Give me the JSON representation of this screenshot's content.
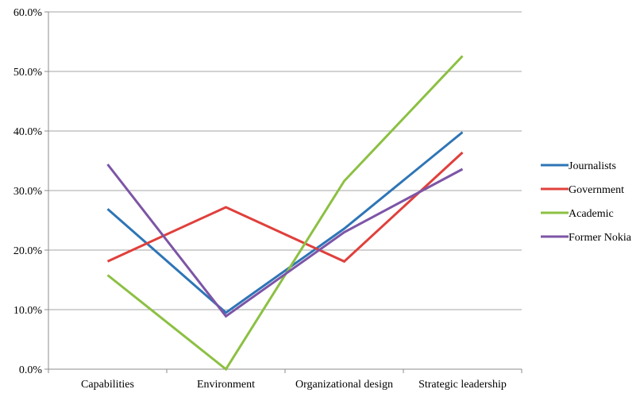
{
  "chart_data": {
    "type": "line",
    "categories": [
      "Capabilities",
      "Environment",
      "Organizational design",
      "Strategic leadership"
    ],
    "series": [
      {
        "name": "Journalists",
        "color": "#2e75b6",
        "values": [
          26.9,
          9.5,
          23.6,
          39.8
        ]
      },
      {
        "name": "Government",
        "color": "#e0403c",
        "values": [
          18.1,
          27.2,
          18.1,
          36.4
        ]
      },
      {
        "name": "Academic",
        "color": "#8cc043",
        "values": [
          15.8,
          0.0,
          31.6,
          52.6
        ]
      },
      {
        "name": "Former Nokia",
        "color": "#7d55a6",
        "values": [
          34.4,
          8.9,
          23.0,
          33.6
        ]
      }
    ],
    "ylim": [
      0,
      60
    ],
    "yticks": [
      "0.0%",
      "10.0%",
      "20.0%",
      "30.0%",
      "40.0%",
      "50.0%",
      "60.0%"
    ],
    "grid": true,
    "legend_position": "right"
  }
}
